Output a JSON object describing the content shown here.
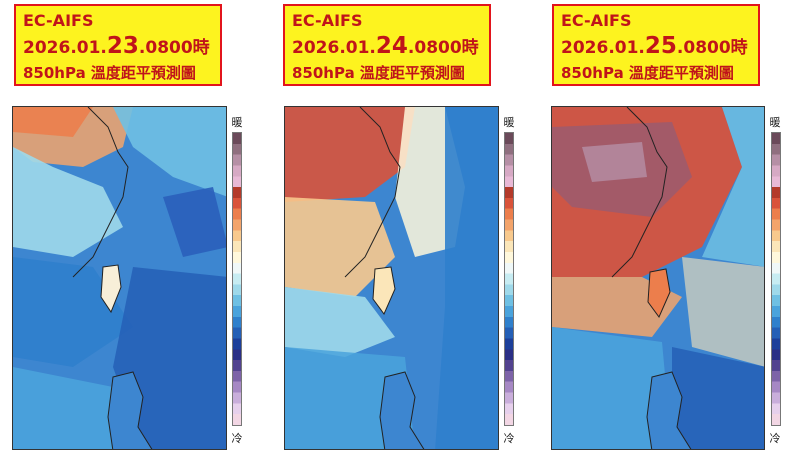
{
  "panels": [
    {
      "model": "EC-AIFS",
      "date_prefix": "2026.01.",
      "day": "23",
      "time_suffix": ".0800時",
      "caption": "850hPa 溫度距平預測圖",
      "warm_label": "暖",
      "cold_label": "冷"
    },
    {
      "model": "EC-AIFS",
      "date_prefix": "2026.01.",
      "day": "24",
      "time_suffix": ".0800時",
      "caption": "850hPa 溫度距平預測圖",
      "warm_label": "暖",
      "cold_label": "冷"
    },
    {
      "model": "EC-AIFS",
      "date_prefix": "2026.01.",
      "day": "25",
      "time_suffix": ".0800時",
      "caption": "850hPa 溫度距平預測圖",
      "warm_label": "暖",
      "cold_label": "冷"
    }
  ],
  "colors": {
    "title_bg": "#fdf31f",
    "title_text": "#c0141a",
    "title_border": "#e2141c",
    "colorbar": [
      "#6b4a5a",
      "#8f6f7f",
      "#b58fa5",
      "#d6a9c4",
      "#e8b9d6",
      "#b33a2a",
      "#d9533a",
      "#ec7e4c",
      "#f3a46b",
      "#f8c98d",
      "#fbe6b9",
      "#fff8dc",
      "#f0f8f8",
      "#c7ecf2",
      "#9fd9ea",
      "#6fc0e3",
      "#4aa3dc",
      "#2f80cc",
      "#245fb6",
      "#1c3f9a",
      "#2a2f86",
      "#52428f",
      "#7d63a8",
      "#a688c4",
      "#c9aedb",
      "#e6d0ec",
      "#f2d6e4"
    ]
  },
  "icons": [
    "warm-label",
    "cold-label"
  ]
}
